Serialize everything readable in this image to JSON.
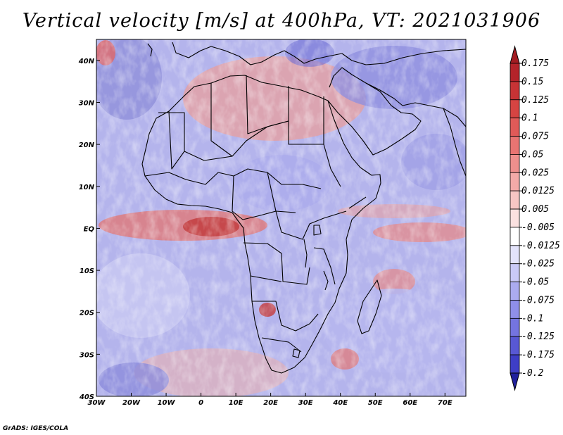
{
  "title": "Vertical velocity [m/s] at 400hPa, VT: 2021031906",
  "credit": "GrADS: IGES/COLA",
  "map": {
    "lon_range": [
      -30,
      76
    ],
    "lat_range": [
      -40,
      45
    ],
    "lon_ticks": [
      {
        "value": -30,
        "label": "30W"
      },
      {
        "value": -20,
        "label": "20W"
      },
      {
        "value": -10,
        "label": "10W"
      },
      {
        "value": 0,
        "label": "0"
      },
      {
        "value": 10,
        "label": "10E"
      },
      {
        "value": 20,
        "label": "20E"
      },
      {
        "value": 30,
        "label": "30E"
      },
      {
        "value": 40,
        "label": "40E"
      },
      {
        "value": 50,
        "label": "50E"
      },
      {
        "value": 60,
        "label": "60E"
      },
      {
        "value": 70,
        "label": "70E"
      }
    ],
    "lat_ticks": [
      {
        "value": 40,
        "label": "40N"
      },
      {
        "value": 30,
        "label": "30N"
      },
      {
        "value": 20,
        "label": "20N"
      },
      {
        "value": 10,
        "label": "10N"
      },
      {
        "value": 0,
        "label": "EQ"
      },
      {
        "value": -10,
        "label": "10S"
      },
      {
        "value": -20,
        "label": "20S"
      },
      {
        "value": -30,
        "label": "30S"
      },
      {
        "value": -40,
        "label": "40S"
      }
    ]
  },
  "colorbar": {
    "levels": [
      {
        "label": "0.175",
        "color": "#b4232a"
      },
      {
        "label": "0.15",
        "color": "#c73335"
      },
      {
        "label": "0.125",
        "color": "#d64442"
      },
      {
        "label": "0.1",
        "color": "#e05a58"
      },
      {
        "label": "0.075",
        "color": "#e87472"
      },
      {
        "label": "0.05",
        "color": "#ee8f8d"
      },
      {
        "label": "0.025",
        "color": "#f3aaa8"
      },
      {
        "label": "0.0125",
        "color": "#f7c6c4"
      },
      {
        "label": "0.005",
        "color": "#fbe1e0"
      },
      {
        "label": "-0.005",
        "color": "#ffffff"
      },
      {
        "label": "-0.0125",
        "color": "#e3e3fb"
      },
      {
        "label": "-0.025",
        "color": "#c9c9f6"
      },
      {
        "label": "-0.05",
        "color": "#ababf0"
      },
      {
        "label": "-0.075",
        "color": "#8f8fe9"
      },
      {
        "label": "-0.1",
        "color": "#7474e0"
      },
      {
        "label": "-0.125",
        "color": "#5858d4"
      },
      {
        "label": "-0.175",
        "color": "#3e3ec6"
      },
      {
        "label": "-0.2",
        "color": "#2a2ab4"
      }
    ],
    "top_arrow_color": "#a31c22",
    "bottom_arrow_color": "#20209c"
  }
}
